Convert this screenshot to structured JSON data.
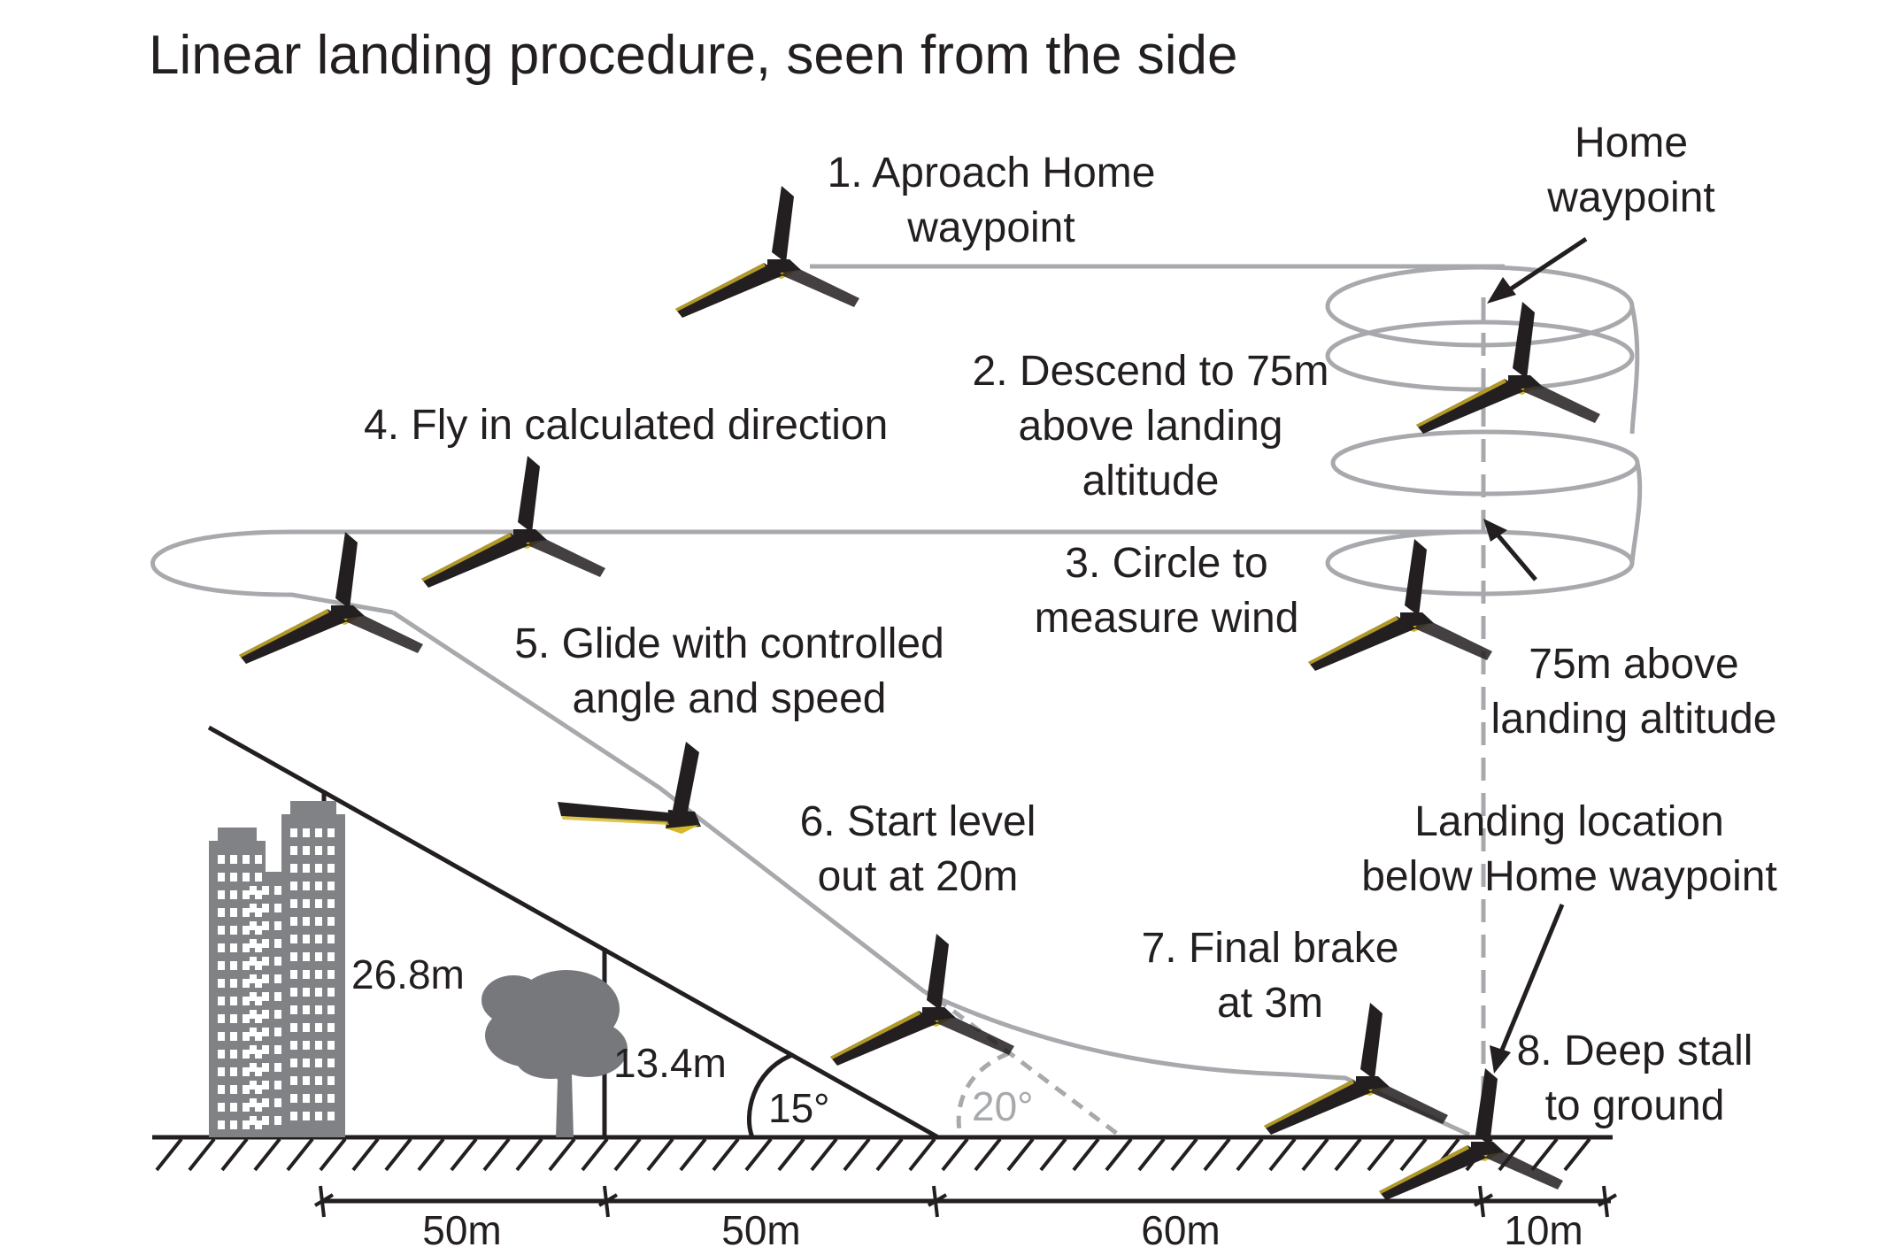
{
  "title": "Linear landing procedure, seen from the side",
  "steps": {
    "s1": [
      "1. Aproach Home",
      "waypoint"
    ],
    "s2": [
      "2. Descend to 75m",
      "above landing",
      "altitude"
    ],
    "s3": [
      "3. Circle to",
      "measure wind"
    ],
    "s4": [
      "4. Fly in calculated direction"
    ],
    "s5": [
      "5. Glide with controlled",
      "angle and speed"
    ],
    "s6": [
      "6. Start level",
      "out at 20m"
    ],
    "s7": [
      "7. Final brake",
      "at 3m"
    ],
    "s8": [
      "8. Deep stall",
      "to ground"
    ]
  },
  "callouts": {
    "home": [
      "Home",
      "waypoint"
    ],
    "alt75": [
      "75m above",
      "landing altitude"
    ],
    "landing": [
      "Landing location",
      "below Home waypoint"
    ]
  },
  "heights": {
    "building": "26.8m",
    "tree": "13.4m"
  },
  "angles": {
    "obstacle": "15°",
    "glide": "20°"
  },
  "distances": [
    "50m",
    "50m",
    "60m",
    "10m"
  ],
  "colors": {
    "path": "#a7a9ac",
    "ink": "#231f20",
    "drone_body": "#231f20",
    "drone_accent": "#d4b82a",
    "building": "#808285",
    "tree": "#77787b"
  },
  "icons": {
    "drone": "fixed-wing-drone-icon",
    "building": "building-icon",
    "tree": "tree-icon"
  }
}
